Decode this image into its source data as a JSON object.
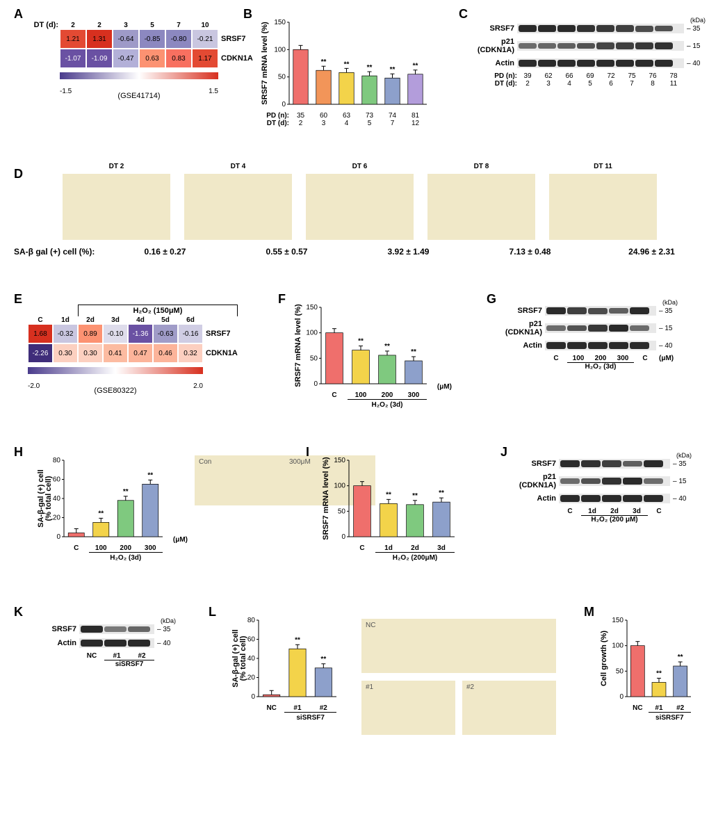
{
  "panelA": {
    "label": "A",
    "prefix": "DT (d):",
    "columns": [
      "2",
      "2",
      "3",
      "5",
      "7",
      "10"
    ],
    "rows": [
      {
        "gene": "SRSF7",
        "values": [
          "1.21",
          "1.31",
          "-0.64",
          "-0.85",
          "-0.80",
          "-0.21"
        ],
        "colors": [
          "#e34a33",
          "#d7301f",
          "#9e9ac8",
          "#8c88c0",
          "#8c88c0",
          "#c9c6e0"
        ]
      },
      {
        "gene": "CDKN1A",
        "values": [
          "-1.07",
          "-1.09",
          "-0.47",
          "0.63",
          "0.83",
          "1.17"
        ],
        "colors": [
          "#6a51a3",
          "#6a51a3",
          "#b3b0d8",
          "#fc9272",
          "#f87060",
          "#e34a33"
        ]
      }
    ],
    "scale_min": "-1.5",
    "scale_max": "1.5",
    "gradient_css": "linear-gradient(to right,#4a3b8c,#ffffff,#d7301f)",
    "dataset": "(GSE41714)"
  },
  "panelB": {
    "label": "B",
    "ylabel": "SRSF7 mRNA level (%)",
    "ymax": 150,
    "ytick": 50,
    "bars": [
      {
        "x": "35",
        "v": 100,
        "c": "#ef6f6c",
        "sig": ""
      },
      {
        "x": "60",
        "v": 62,
        "c": "#f29559",
        "sig": "**"
      },
      {
        "x": "63",
        "v": 58,
        "c": "#f3d34a",
        "sig": "**"
      },
      {
        "x": "73",
        "v": 52,
        "c": "#7fc97f",
        "sig": "**"
      },
      {
        "x": "74",
        "v": 48,
        "c": "#8da0cb",
        "sig": "**"
      },
      {
        "x": "81",
        "v": 55,
        "c": "#b39ddb",
        "sig": "**"
      }
    ],
    "xrow1_label": "PD (n):",
    "xrow2_label": "DT (d):",
    "xrow2": [
      "2",
      "3",
      "4",
      "5",
      "7",
      "12"
    ]
  },
  "panelC": {
    "label": "C",
    "kda_title": "(kDa)",
    "rows": [
      {
        "name": "SRSF7",
        "kda": "35",
        "widths": [
          1,
          1,
          1,
          0.95,
          0.9,
          0.85,
          0.75,
          0.7
        ]
      },
      {
        "name": "p21\n(CDKN1A)",
        "kda": "15",
        "widths": [
          0.5,
          0.55,
          0.6,
          0.7,
          0.8,
          0.85,
          0.9,
          0.95
        ]
      },
      {
        "name": "Actin",
        "kda": "40",
        "widths": [
          1,
          1,
          1,
          1,
          1,
          1,
          1,
          1
        ]
      }
    ],
    "pd_label": "PD (n):",
    "pd": [
      "39",
      "62",
      "66",
      "69",
      "72",
      "75",
      "76",
      "78"
    ],
    "dt_label": "DT (d):",
    "dt": [
      "2",
      "3",
      "4",
      "5",
      "6",
      "7",
      "8",
      "11"
    ]
  },
  "panelD": {
    "label": "D",
    "images": [
      "DT 2",
      "DT 4",
      "DT 6",
      "DT 8",
      "DT 11"
    ],
    "row_label": "SA-β gal (+) cell (%):",
    "values": [
      "0.16 ± 0.27",
      "0.55 ± 0.57",
      "3.92 ± 1.49",
      "7.13 ± 0.48",
      "24.96 ± 2.31"
    ]
  },
  "panelE": {
    "label": "E",
    "header_top": "H₂O₂ (150μM)",
    "columns": [
      "C",
      "1d",
      "2d",
      "3d",
      "4d",
      "5d",
      "6d"
    ],
    "rows": [
      {
        "gene": "SRSF7",
        "values": [
          "1.68",
          "-0.32",
          "0.89",
          "-0.10",
          "-1.36",
          "-0.63",
          "-0.16"
        ],
        "colors": [
          "#d7301f",
          "#c9c6e0",
          "#fc9272",
          "#dedceb",
          "#6a51a3",
          "#a09cc8",
          "#d0cde4"
        ]
      },
      {
        "gene": "CDKN1A",
        "values": [
          "-2.26",
          "0.30",
          "0.30",
          "0.41",
          "0.47",
          "0.46",
          "0.32"
        ],
        "colors": [
          "#3f2d7a",
          "#fcd0c0",
          "#fcd0c0",
          "#fcbba1",
          "#fcb49a",
          "#fcb49a",
          "#fccfc0"
        ]
      }
    ],
    "scale_min": "-2.0",
    "scale_max": "2.0",
    "gradient_css": "linear-gradient(to right,#4a3b8c,#ffffff,#d7301f)",
    "dataset": "(GSE80322)"
  },
  "panelF": {
    "label": "F",
    "ylabel": "SRSF7 mRNA level (%)",
    "ymax": 150,
    "ytick": 50,
    "bars": [
      {
        "x": "C",
        "v": 100,
        "c": "#ef6f6c",
        "sig": ""
      },
      {
        "x": "100",
        "v": 66,
        "c": "#f3d34a",
        "sig": "**"
      },
      {
        "x": "200",
        "v": 56,
        "c": "#7fc97f",
        "sig": "**"
      },
      {
        "x": "300",
        "v": 45,
        "c": "#8da0cb",
        "sig": "**"
      }
    ],
    "unit": "(μM)",
    "bottom": "H₂O₂ (3d)"
  },
  "panelG": {
    "label": "G",
    "kda_title": "(kDa)",
    "rows": [
      {
        "name": "SRSF7",
        "kda": "35",
        "widths": [
          1,
          0.85,
          0.75,
          0.6,
          1
        ]
      },
      {
        "name": "p21\n(CDKN1A)",
        "kda": "15",
        "widths": [
          0.5,
          0.7,
          0.9,
          1,
          0.5
        ]
      },
      {
        "name": "Actin",
        "kda": "40",
        "widths": [
          1,
          1,
          1,
          1,
          1
        ]
      }
    ],
    "lanes": [
      "C",
      "100",
      "200",
      "300",
      "C"
    ],
    "unit": "(μM)",
    "bottom": "H₂O₂ (3d)"
  },
  "panelH": {
    "label": "H",
    "ylabel": "SA-β-gal (+) cell\n(% total cell)",
    "ymax": 80,
    "ytick": 20,
    "bars": [
      {
        "x": "C",
        "v": 4,
        "c": "#ef6f6c",
        "sig": ""
      },
      {
        "x": "100",
        "v": 15,
        "c": "#f3d34a",
        "sig": "**"
      },
      {
        "x": "200",
        "v": 38,
        "c": "#7fc97f",
        "sig": "**"
      },
      {
        "x": "300",
        "v": 55,
        "c": "#8da0cb",
        "sig": "**"
      }
    ],
    "unit": "(μM)",
    "bottom": "H₂O₂ (3d)",
    "imgs": [
      "Con",
      "300μM"
    ]
  },
  "panelI": {
    "label": "I",
    "ylabel": "SRSF7 mRNA level (%)",
    "ymax": 150,
    "ytick": 50,
    "bars": [
      {
        "x": "C",
        "v": 100,
        "c": "#ef6f6c",
        "sig": ""
      },
      {
        "x": "1d",
        "v": 65,
        "c": "#f3d34a",
        "sig": "**"
      },
      {
        "x": "2d",
        "v": 63,
        "c": "#7fc97f",
        "sig": "**"
      },
      {
        "x": "3d",
        "v": 68,
        "c": "#8da0cb",
        "sig": "**"
      }
    ],
    "bottom": "H₂O₂ (200μM)"
  },
  "panelJ": {
    "label": "J",
    "kda_title": "(kDa)",
    "rows": [
      {
        "name": "SRSF7",
        "kda": "35",
        "widths": [
          1,
          0.95,
          0.85,
          0.6,
          1
        ]
      },
      {
        "name": "p21\n(CDKN1A)",
        "kda": "15",
        "widths": [
          0.5,
          0.7,
          0.95,
          1,
          0.5
        ]
      },
      {
        "name": "Actin",
        "kda": "40",
        "widths": [
          1,
          1,
          1,
          1,
          1
        ]
      }
    ],
    "lanes": [
      "C",
      "1d",
      "2d",
      "3d",
      "C"
    ],
    "bottom": "H₂O₂ (200 μM)"
  },
  "panelK": {
    "label": "K",
    "kda_title": "(kDa)",
    "rows": [
      {
        "name": "SRSF7",
        "kda": "35",
        "widths": [
          1,
          0.4,
          0.55
        ]
      },
      {
        "name": "Actin",
        "kda": "40",
        "widths": [
          1,
          1,
          1
        ]
      }
    ],
    "lanes": [
      "NC",
      "#1",
      "#2"
    ],
    "bottom": "siSRSF7"
  },
  "panelL": {
    "label": "L",
    "ylabel": "SA-β-gal (+) cell\n(% total cell)",
    "ymax": 80,
    "ytick": 20,
    "bars": [
      {
        "x": "NC",
        "v": 2,
        "c": "#ef6f6c",
        "sig": ""
      },
      {
        "x": "#1",
        "v": 50,
        "c": "#f3d34a",
        "sig": "**"
      },
      {
        "x": "#2",
        "v": 30,
        "c": "#8da0cb",
        "sig": "**"
      }
    ],
    "bottom": "siSRSF7",
    "imgs": [
      "NC",
      "#1",
      "#2"
    ]
  },
  "panelM": {
    "label": "M",
    "ylabel": "Cell growth (%)",
    "ymax": 150,
    "ytick": 50,
    "bars": [
      {
        "x": "NC",
        "v": 100,
        "c": "#ef6f6c",
        "sig": ""
      },
      {
        "x": "#1",
        "v": 28,
        "c": "#f3d34a",
        "sig": "**"
      },
      {
        "x": "#2",
        "v": 60,
        "c": "#8da0cb",
        "sig": "**"
      }
    ],
    "bottom": "siSRSF7"
  }
}
